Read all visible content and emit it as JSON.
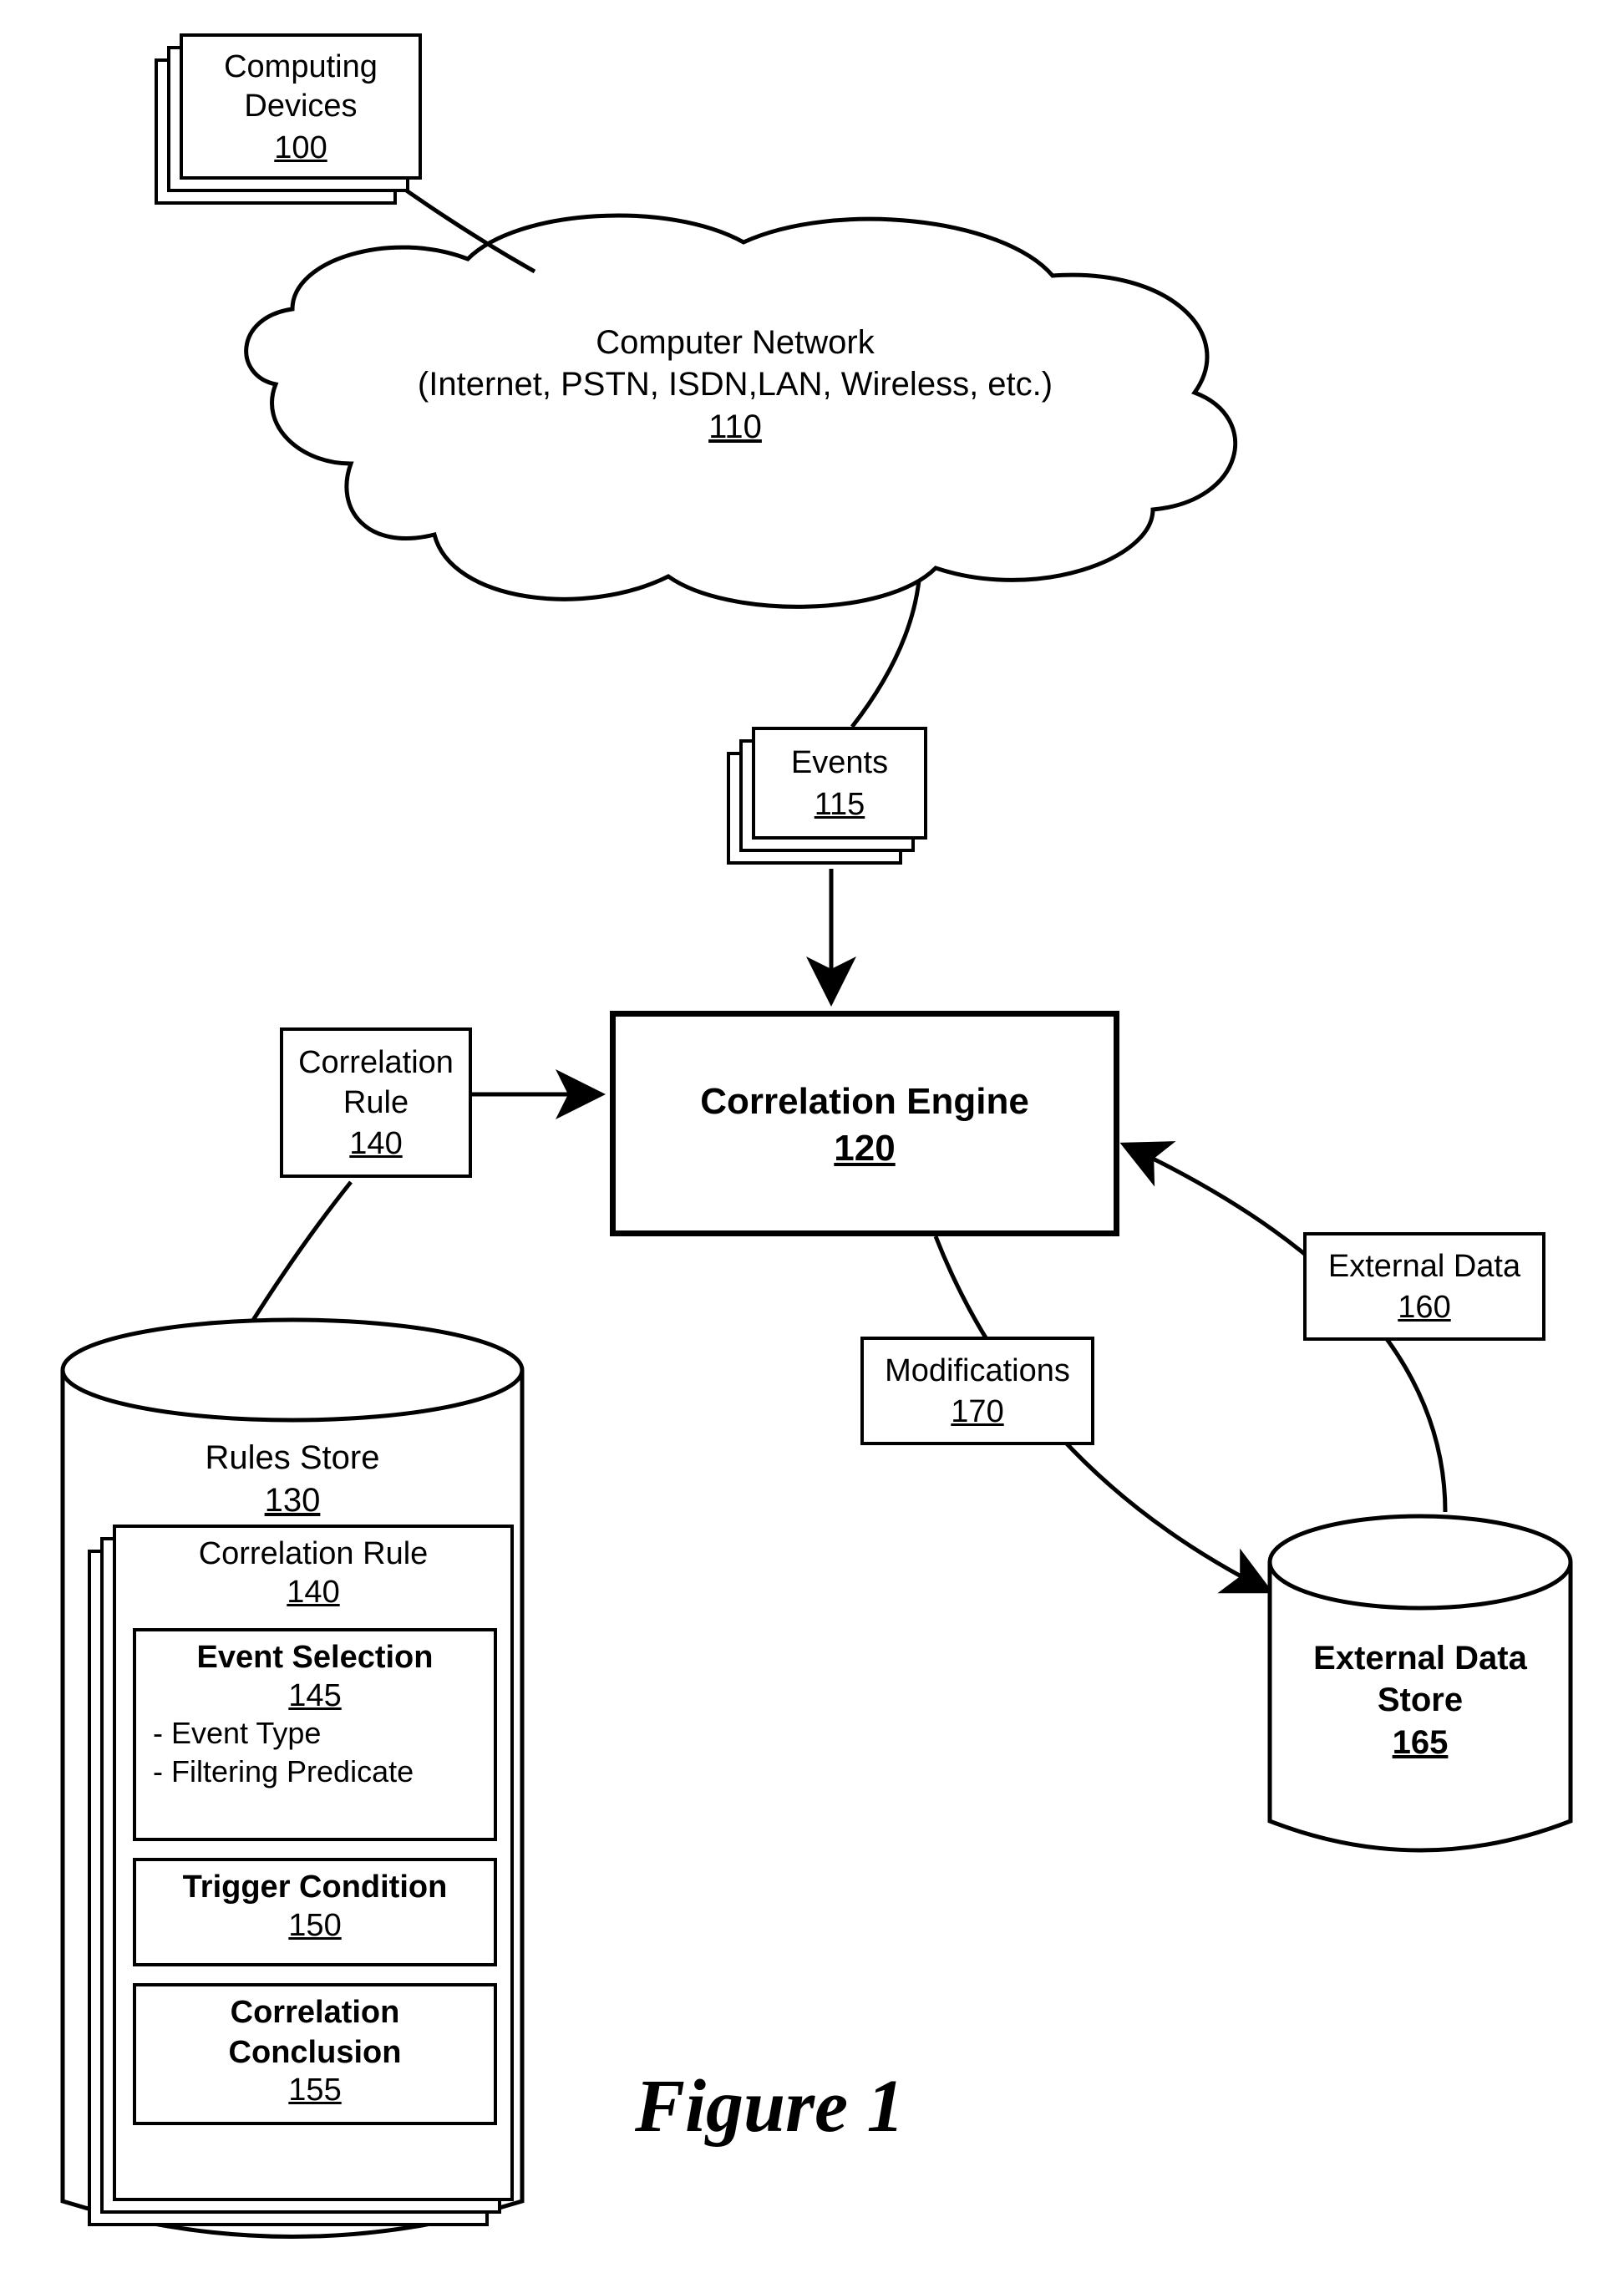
{
  "nodes": {
    "computing_devices": {
      "title": "Computing\nDevices",
      "number": "100"
    },
    "network": {
      "title": "Computer Network\n(Internet, PSTN, ISDN,LAN, Wireless, etc.)",
      "number": "110"
    },
    "events": {
      "title": "Events",
      "number": "115"
    },
    "correlation_engine": {
      "title": "Correlation Engine",
      "number": "120"
    },
    "correlation_rule_label": {
      "title": "Correlation\nRule",
      "number": "140"
    },
    "modifications": {
      "title": "Modifications",
      "number": "170"
    },
    "external_data": {
      "title": "External Data",
      "number": "160"
    },
    "external_data_store": {
      "title": "External Data\nStore",
      "number": "165"
    },
    "rules_store": {
      "title": "Rules Store",
      "number": "130"
    },
    "correlation_rule": {
      "title": "Correlation Rule",
      "number": "140"
    },
    "event_selection": {
      "title": "Event Selection",
      "number": "145",
      "details": [
        "- Event Type",
        "- Filtering Predicate"
      ]
    },
    "trigger_condition": {
      "title": "Trigger Condition",
      "number": "150"
    },
    "correlation_conclusion": {
      "title": "Correlation\nConclusion",
      "number": "155"
    }
  },
  "figure_label": "Figure 1",
  "style": {
    "stroke": "#000000",
    "stroke_width": 5,
    "thick_stroke_width": 7,
    "font_size": 38,
    "bg": "#ffffff"
  }
}
